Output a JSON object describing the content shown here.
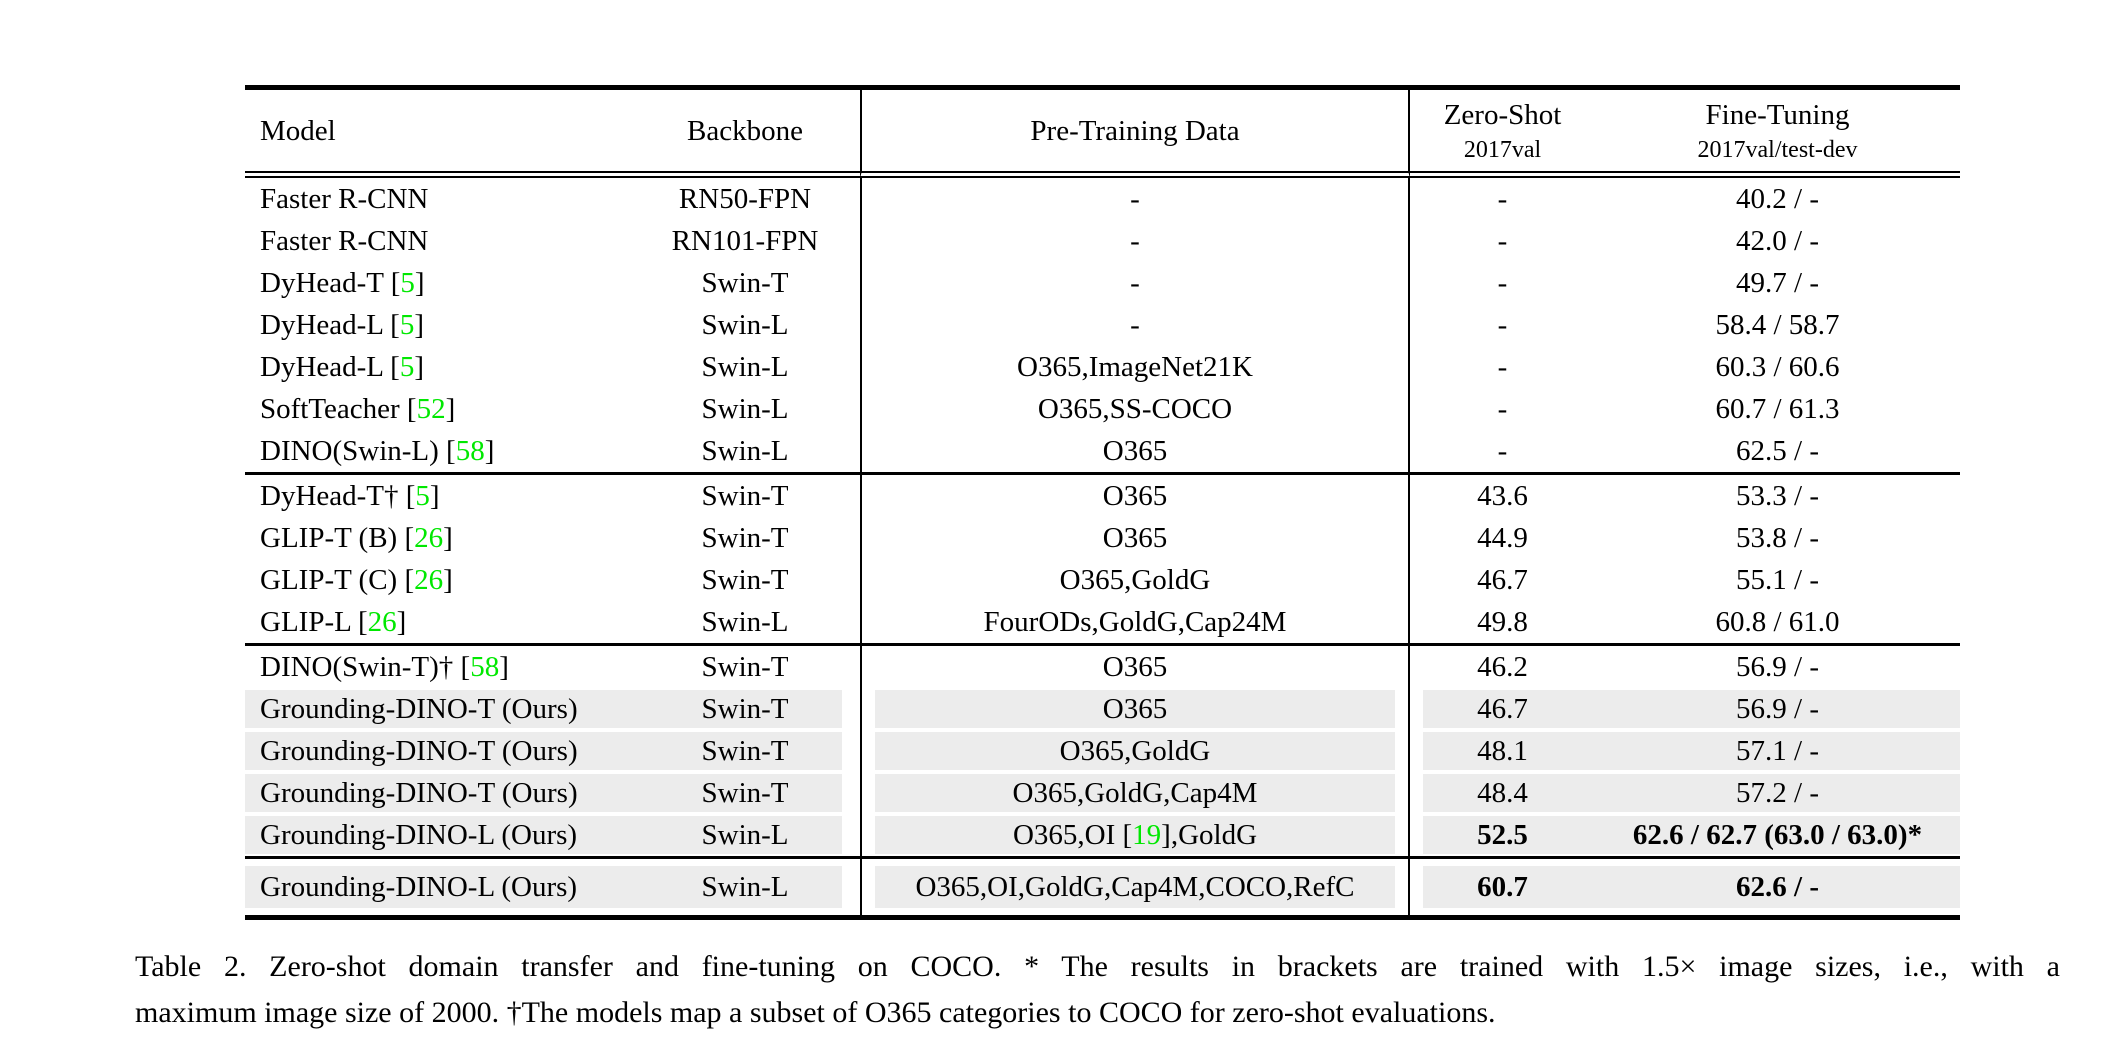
{
  "table": {
    "headers": {
      "model": "Model",
      "backbone": "Backbone",
      "pretrain": "Pre-Training Data",
      "zeroshot_line1": "Zero-Shot",
      "zeroshot_line2": "2017val",
      "finetune_line1": "Fine-Tuning",
      "finetune_line2": "2017val/test-dev"
    },
    "colors": {
      "cite_green": "#00e800",
      "row_shade": "#ececec",
      "rule_black": "#000000"
    },
    "blocks": [
      {
        "rows": [
          {
            "model": "Faster R-CNN",
            "backbone": "RN50-FPN",
            "pretrain": "-",
            "zeroshot": "-",
            "finetune": "40.2 / -",
            "shaded": false,
            "bold": false
          },
          {
            "model": "Faster R-CNN",
            "backbone": "RN101-FPN",
            "pretrain": "-",
            "zeroshot": "-",
            "finetune": "42.0 / -",
            "shaded": false,
            "bold": false
          },
          {
            "model": "DyHead-T [5]",
            "backbone": "Swin-T",
            "pretrain": "-",
            "zeroshot": "-",
            "finetune": "49.7 / -",
            "shaded": false,
            "bold": false
          },
          {
            "model": "DyHead-L [5]",
            "backbone": "Swin-L",
            "pretrain": "-",
            "zeroshot": "-",
            "finetune": "58.4 / 58.7",
            "shaded": false,
            "bold": false
          },
          {
            "model": "DyHead-L [5]",
            "backbone": "Swin-L",
            "pretrain": "O365,ImageNet21K",
            "zeroshot": "-",
            "finetune": "60.3 / 60.6",
            "shaded": false,
            "bold": false
          },
          {
            "model": "SoftTeacher [52]",
            "backbone": "Swin-L",
            "pretrain": "O365,SS-COCO",
            "zeroshot": "-",
            "finetune": "60.7 / 61.3",
            "shaded": false,
            "bold": false
          },
          {
            "model": "DINO(Swin-L) [58]",
            "backbone": "Swin-L",
            "pretrain": "O365",
            "zeroshot": "-",
            "finetune": "62.5 / -",
            "shaded": false,
            "bold": false
          }
        ]
      },
      {
        "rows": [
          {
            "model": "DyHead-T† [5]",
            "backbone": "Swin-T",
            "pretrain": "O365",
            "zeroshot": "43.6",
            "finetune": "53.3 / -",
            "shaded": false,
            "bold": false
          },
          {
            "model": "GLIP-T (B) [26]",
            "backbone": "Swin-T",
            "pretrain": "O365",
            "zeroshot": "44.9",
            "finetune": "53.8 / -",
            "shaded": false,
            "bold": false
          },
          {
            "model": "GLIP-T (C) [26]",
            "backbone": "Swin-T",
            "pretrain": "O365,GoldG",
            "zeroshot": "46.7",
            "finetune": "55.1 / -",
            "shaded": false,
            "bold": false
          },
          {
            "model": "GLIP-L [26]",
            "backbone": "Swin-L",
            "pretrain": "FourODs,GoldG,Cap24M",
            "zeroshot": "49.8",
            "finetune": "60.8 / 61.0",
            "shaded": false,
            "bold": false
          }
        ]
      },
      {
        "rows": [
          {
            "model": "DINO(Swin-T)† [58]",
            "backbone": "Swin-T",
            "pretrain": "O365",
            "zeroshot": "46.2",
            "finetune": "56.9 / -",
            "shaded": false,
            "bold": false
          },
          {
            "model": "Grounding-DINO-T (Ours)",
            "backbone": "Swin-T",
            "pretrain": "O365",
            "zeroshot": "46.7",
            "finetune": "56.9 / -",
            "shaded": true,
            "bold": false
          },
          {
            "model": "Grounding-DINO-T (Ours)",
            "backbone": "Swin-T",
            "pretrain": "O365,GoldG",
            "zeroshot": "48.1",
            "finetune": "57.1 / -",
            "shaded": true,
            "bold": false
          },
          {
            "model": "Grounding-DINO-T (Ours)",
            "backbone": "Swin-T",
            "pretrain": "O365,GoldG,Cap4M",
            "zeroshot": "48.4",
            "finetune": "57.2 / -",
            "shaded": true,
            "bold": false
          },
          {
            "model": "Grounding-DINO-L (Ours)",
            "backbone": "Swin-L",
            "pretrain": "O365,OI [19],GoldG",
            "zeroshot": "52.5",
            "finetune": "62.6 / 62.7 (63.0 / 63.0)*",
            "shaded": true,
            "bold": true
          }
        ]
      },
      {
        "rows": [
          {
            "model": "Grounding-DINO-L (Ours)",
            "backbone": "Swin-L",
            "pretrain": "O365,OI,GoldG,Cap4M,COCO,RefC",
            "zeroshot": "60.7",
            "finetune": "62.6 / -",
            "shaded": true,
            "bold": true,
            "tall": true
          }
        ]
      }
    ]
  },
  "caption": {
    "line1": "Table 2.  Zero-shot domain transfer and fine-tuning on COCO. * The results in brackets are trained with 1.5× image sizes, i.e., with a",
    "line2": "maximum image size of 2000. †The models map a subset of O365 categories to COCO for zero-shot evaluations."
  }
}
